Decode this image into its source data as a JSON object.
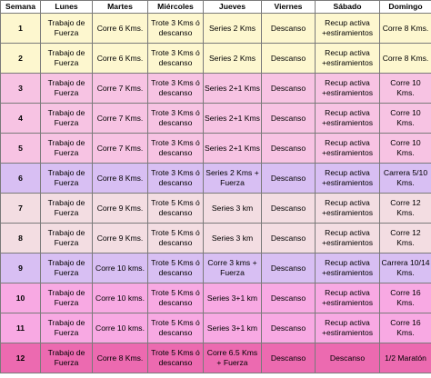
{
  "headers": [
    "Semana",
    "Lunes",
    "Martes",
    "Miércoles",
    "Jueves",
    "Viernes",
    "Sábado",
    "Domingo"
  ],
  "rows": [
    {
      "bg": "#fdf7cf",
      "cells": [
        "1",
        "Trabajo de Fuerza",
        "Corre 6 Kms.",
        "Trote 3 Kms ó descanso",
        "Series 2 Kms",
        "Descanso",
        "Recup activa +estiramientos",
        "Corre 8 Kms."
      ]
    },
    {
      "bg": "#fdf7cf",
      "cells": [
        "2",
        "Trabajo de Fuerza",
        "Corre 6 Kms.",
        "Trote 3 Kms ó descanso",
        "Series 2 Kms",
        "Descanso",
        "Recup activa +estiramientos",
        "Corre 8 Kms."
      ]
    },
    {
      "bg": "#f7c3e3",
      "cells": [
        "3",
        "Trabajo de Fuerza",
        "Corre 7 Kms.",
        "Trote 3 Kms ó descanso",
        "Series 2+1 Kms",
        "Descanso",
        "Recup activa +estiramientos",
        "Corre 10 Kms."
      ]
    },
    {
      "bg": "#f7c3e3",
      "cells": [
        "4",
        "Trabajo de Fuerza",
        "Corre 7 Kms.",
        "Trote 3 Kms ó descanso",
        "Series 2+1 Kms",
        "Descanso",
        "Recup activa +estiramientos",
        "Corre 10 Kms."
      ]
    },
    {
      "bg": "#f7c3e3",
      "cells": [
        "5",
        "Trabajo de Fuerza",
        "Corre 7 Kms.",
        "Trote 3 Kms ó descanso",
        "Series 2+1 Kms",
        "Descanso",
        "Recup activa +estiramientos",
        "Corre 10 Kms."
      ]
    },
    {
      "bg": "#d8bff3",
      "cells": [
        "6",
        "Trabajo de Fuerza",
        "Corre 8 Kms.",
        "Trote 3 Kms ó descanso",
        "Series 2 Kms + Fuerza",
        "Descanso",
        "Recup activa +estiramientos",
        "Carrera 5/10 Kms."
      ]
    },
    {
      "bg": "#f3dde2",
      "cells": [
        "7",
        "Trabajo de Fuerza",
        "Corre 9 Kms.",
        "Trote 5 Kms ó descanso",
        "Series 3 km",
        "Descanso",
        "Recup activa +estiramientos",
        "Corre 12 Kms."
      ]
    },
    {
      "bg": "#f3dde2",
      "cells": [
        "8",
        "Trabajo de Fuerza",
        "Corre 9 Kms.",
        "Trote 5 Kms ó descanso",
        "Series 3 km",
        "Descanso",
        "Recup activa +estiramientos",
        "Corre 12 Kms."
      ]
    },
    {
      "bg": "#d8bff3",
      "cells": [
        "9",
        "Trabajo de Fuerza",
        "Corre 10 kms.",
        "Trote 5 Kms ó descanso",
        "Corre 3 kms + Fuerza",
        "Descanso",
        "Recup activa +estiramientos",
        "Carrera 10/14 Kms."
      ]
    },
    {
      "bg": "#f8a9e3",
      "cells": [
        "10",
        "Trabajo de Fuerza",
        "Corre 10 kms.",
        "Trote 5 Kms ó descanso",
        "Series 3+1 km",
        "Descanso",
        "Recup activa +estiramientos",
        "Corre 16 Kms."
      ]
    },
    {
      "bg": "#f8a9e3",
      "cells": [
        "11",
        "Trabajo de Fuerza",
        "Corre 10 kms.",
        "Trote 5 Kms ó descanso",
        "Series 3+1 km",
        "Descanso",
        "Recup activa +estiramientos",
        "Corre 16 Kms."
      ]
    },
    {
      "bg": "#ec6ab0",
      "cells": [
        "12",
        "Trabajo de Fuerza",
        "Corre 8 Kms.",
        "Trote 5 Kms ó descanso",
        "Corre 6.5 Kms + Fuerza",
        "Descanso",
        "Descanso",
        "1/2 Maratón"
      ]
    }
  ]
}
